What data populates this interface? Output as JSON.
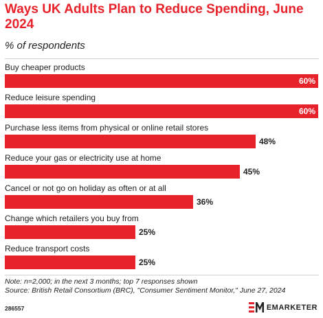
{
  "header": {
    "title": "Ways UK Adults Plan to Reduce Spending, June 2024",
    "subtitle": "% of respondents"
  },
  "chart_data": {
    "type": "bar",
    "orientation": "horizontal",
    "categories": [
      "Buy cheaper products",
      "Reduce leisure spending",
      "Purchase less items from physical or online retail stores",
      "Reduce your gas or electricity use at home",
      "Cancel or not go on holiday as often or at all",
      "Change which retailers you buy from",
      "Reduce transport costs"
    ],
    "values": [
      60,
      60,
      48,
      45,
      36,
      25,
      25
    ],
    "value_labels": [
      "60%",
      "60%",
      "48%",
      "45%",
      "36%",
      "25%",
      "25%"
    ],
    "xlim": [
      0,
      60
    ],
    "bar_color": "#e8222a",
    "grid": false
  },
  "footer": {
    "note": "Note: n=2,000; in the next 3 months; top 7 responses shown",
    "source": "Source: British Retail Consortium (BRC), \"Consumer Sentiment Monitor,\" June 27, 2024",
    "chart_id": "286557",
    "brand": "EMARKETER",
    "brand_logo_icon": "em-logo-icon"
  }
}
